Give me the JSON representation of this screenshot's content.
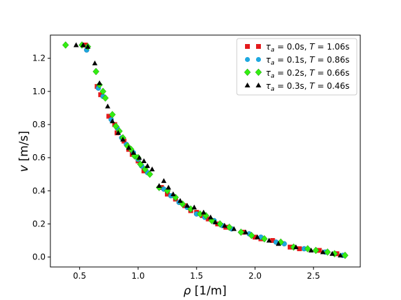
{
  "chart_data": {
    "type": "scatter",
    "xlabel_symbol": "ρ",
    "xlabel_unit": "[1/m]",
    "ylabel_symbol": "v",
    "ylabel_unit": "[m/s]",
    "xlim": [
      0.25,
      2.9
    ],
    "ylim": [
      -0.06,
      1.34
    ],
    "xticks": [
      0.5,
      1.0,
      1.5,
      2.0,
      2.5
    ],
    "xtick_labels": [
      "0.5",
      "1.0",
      "1.5",
      "2.0",
      "2.5"
    ],
    "yticks": [
      0.0,
      0.2,
      0.4,
      0.6,
      0.8,
      1.0,
      1.2
    ],
    "ytick_labels": [
      "0.0",
      "0.2",
      "0.4",
      "0.6",
      "0.8",
      "1.0",
      "1.2"
    ],
    "grid": false,
    "legend_position": "top-right",
    "series": [
      {
        "name": "τ_a = 0.0s, T = 1.06s",
        "tau_value": "0.0s",
        "T_value": "1.06s",
        "marker": "square",
        "color": "#e41a1c",
        "points": [
          [
            0.55,
            1.28
          ],
          [
            0.65,
            1.03
          ],
          [
            0.68,
            0.98
          ],
          [
            0.75,
            0.85
          ],
          [
            0.8,
            0.8
          ],
          [
            0.82,
            0.75
          ],
          [
            0.88,
            0.7
          ],
          [
            0.92,
            0.65
          ],
          [
            0.95,
            0.62
          ],
          [
            1.0,
            0.58
          ],
          [
            1.05,
            0.52
          ],
          [
            1.2,
            0.42
          ],
          [
            1.25,
            0.38
          ],
          [
            1.32,
            0.35
          ],
          [
            1.4,
            0.31
          ],
          [
            1.45,
            0.28
          ],
          [
            1.5,
            0.27
          ],
          [
            1.55,
            0.25
          ],
          [
            1.6,
            0.23
          ],
          [
            1.68,
            0.2
          ],
          [
            1.75,
            0.18
          ],
          [
            1.9,
            0.15
          ],
          [
            2.0,
            0.12
          ],
          [
            2.05,
            0.11
          ],
          [
            2.15,
            0.1
          ],
          [
            2.3,
            0.06
          ],
          [
            2.38,
            0.05
          ],
          [
            2.55,
            0.04
          ],
          [
            2.7,
            0.02
          ]
        ]
      },
      {
        "name": "τ_a = 0.1s, T = 0.86s",
        "tau_value": "0.1s",
        "T_value": "0.86s",
        "marker": "circle",
        "color": "#1fa8e0",
        "points": [
          [
            0.56,
            1.25
          ],
          [
            0.66,
            1.02
          ],
          [
            0.7,
            0.97
          ],
          [
            0.77,
            0.83
          ],
          [
            0.82,
            0.78
          ],
          [
            0.86,
            0.72
          ],
          [
            0.9,
            0.68
          ],
          [
            0.96,
            0.63
          ],
          [
            1.0,
            0.59
          ],
          [
            1.03,
            0.55
          ],
          [
            1.08,
            0.51
          ],
          [
            1.22,
            0.41
          ],
          [
            1.28,
            0.37
          ],
          [
            1.35,
            0.33
          ],
          [
            1.42,
            0.3
          ],
          [
            1.5,
            0.26
          ],
          [
            1.57,
            0.24
          ],
          [
            1.65,
            0.22
          ],
          [
            1.72,
            0.19
          ],
          [
            1.8,
            0.17
          ],
          [
            1.95,
            0.14
          ],
          [
            2.05,
            0.12
          ],
          [
            2.18,
            0.09
          ],
          [
            2.25,
            0.08
          ],
          [
            2.42,
            0.05
          ],
          [
            2.6,
            0.03
          ],
          [
            2.75,
            0.01
          ]
        ]
      },
      {
        "name": "τ_a = 0.2s, T = 0.66s",
        "tau_value": "0.2s",
        "T_value": "0.66s",
        "marker": "diamond",
        "color": "#33ee11",
        "points": [
          [
            0.38,
            1.28
          ],
          [
            0.52,
            1.28
          ],
          [
            0.57,
            1.27
          ],
          [
            0.64,
            1.12
          ],
          [
            0.67,
            1.04
          ],
          [
            0.7,
            1.0
          ],
          [
            0.72,
            0.96
          ],
          [
            0.78,
            0.86
          ],
          [
            0.81,
            0.79
          ],
          [
            0.84,
            0.76
          ],
          [
            0.87,
            0.72
          ],
          [
            0.91,
            0.67
          ],
          [
            0.94,
            0.65
          ],
          [
            0.97,
            0.61
          ],
          [
            1.0,
            0.6
          ],
          [
            1.02,
            0.56
          ],
          [
            1.06,
            0.53
          ],
          [
            1.1,
            0.5
          ],
          [
            1.18,
            0.42
          ],
          [
            1.25,
            0.4
          ],
          [
            1.32,
            0.36
          ],
          [
            1.38,
            0.32
          ],
          [
            1.45,
            0.29
          ],
          [
            1.53,
            0.26
          ],
          [
            1.58,
            0.25
          ],
          [
            1.63,
            0.22
          ],
          [
            1.7,
            0.2
          ],
          [
            1.78,
            0.18
          ],
          [
            1.88,
            0.15
          ],
          [
            1.97,
            0.13
          ],
          [
            2.08,
            0.11
          ],
          [
            2.22,
            0.09
          ],
          [
            2.33,
            0.06
          ],
          [
            2.45,
            0.05
          ],
          [
            2.52,
            0.04
          ],
          [
            2.62,
            0.03
          ],
          [
            2.68,
            0.02
          ],
          [
            2.77,
            0.01
          ]
        ]
      },
      {
        "name": "τ_a = 0.3s, T = 0.46s",
        "tau_value": "0.3s",
        "T_value": "0.46s",
        "marker": "triangle",
        "color": "#000000",
        "points": [
          [
            0.47,
            1.28
          ],
          [
            0.53,
            1.28
          ],
          [
            0.57,
            1.27
          ],
          [
            0.63,
            1.17
          ],
          [
            0.67,
            1.05
          ],
          [
            0.74,
            0.91
          ],
          [
            0.78,
            0.82
          ],
          [
            0.83,
            0.75
          ],
          [
            0.87,
            0.71
          ],
          [
            0.92,
            0.66
          ],
          [
            0.96,
            0.63
          ],
          [
            1.01,
            0.6
          ],
          [
            1.05,
            0.58
          ],
          [
            1.08,
            0.55
          ],
          [
            1.12,
            0.53
          ],
          [
            1.18,
            0.43
          ],
          [
            1.22,
            0.46
          ],
          [
            1.26,
            0.42
          ],
          [
            1.3,
            0.38
          ],
          [
            1.36,
            0.34
          ],
          [
            1.42,
            0.31
          ],
          [
            1.48,
            0.3
          ],
          [
            1.56,
            0.27
          ],
          [
            1.62,
            0.24
          ],
          [
            1.66,
            0.21
          ],
          [
            1.74,
            0.19
          ],
          [
            1.82,
            0.17
          ],
          [
            1.92,
            0.15
          ],
          [
            2.02,
            0.12
          ],
          [
            2.12,
            0.1
          ],
          [
            2.2,
            0.08
          ],
          [
            2.35,
            0.06
          ],
          [
            2.48,
            0.04
          ],
          [
            2.58,
            0.03
          ],
          [
            2.66,
            0.02
          ],
          [
            2.73,
            0.01
          ]
        ]
      }
    ]
  }
}
